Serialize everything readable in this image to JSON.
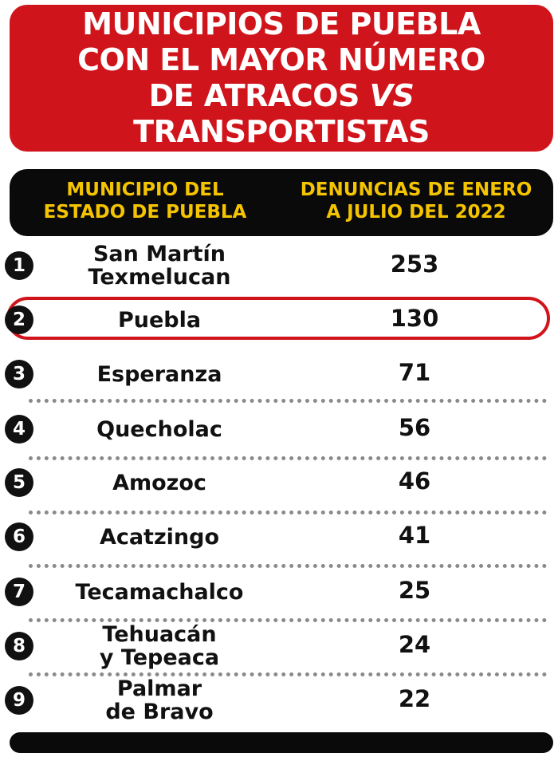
{
  "title": {
    "line1": "MUNICIPIOS DE PUEBLA",
    "line2": "CON EL MAYOR NÚMERO",
    "line3a": "DE ATRACOS ",
    "line3b": "VS",
    "line4": "TRANSPORTISTAS"
  },
  "header": {
    "col1_line1": "MUNICIPIO DEL",
    "col1_line2": "ESTADO DE PUEBLA",
    "col2_line1": "DENUNCIAS DE ENERO",
    "col2_line2": "A JULIO DEL 2022"
  },
  "colors": {
    "accent": "#d0141b",
    "header_text": "#f5c400",
    "dark": "#0a0a0a",
    "highlighted_rank": 2
  },
  "chart_data": {
    "type": "table",
    "columns": [
      "MUNICIPIO DEL ESTADO DE PUEBLA",
      "DENUNCIAS DE ENERO A JULIO DEL 2022"
    ],
    "rows": [
      {
        "rank": "1",
        "municipio": "San Martín\nTexmelucan",
        "denuncias": 253
      },
      {
        "rank": "2",
        "municipio": "Puebla",
        "denuncias": 130
      },
      {
        "rank": "3",
        "municipio": "Esperanza",
        "denuncias": 71
      },
      {
        "rank": "4",
        "municipio": "Quecholac",
        "denuncias": 56
      },
      {
        "rank": "5",
        "municipio": "Amozoc",
        "denuncias": 46
      },
      {
        "rank": "6",
        "municipio": "Acatzingo",
        "denuncias": 41
      },
      {
        "rank": "7",
        "municipio": "Tecamachalco",
        "denuncias": 25
      },
      {
        "rank": "8",
        "municipio": "Tehuacán\ny Tepeaca",
        "denuncias": 24
      },
      {
        "rank": "9",
        "municipio": "Palmar\nde Bravo",
        "denuncias": 22
      }
    ]
  }
}
